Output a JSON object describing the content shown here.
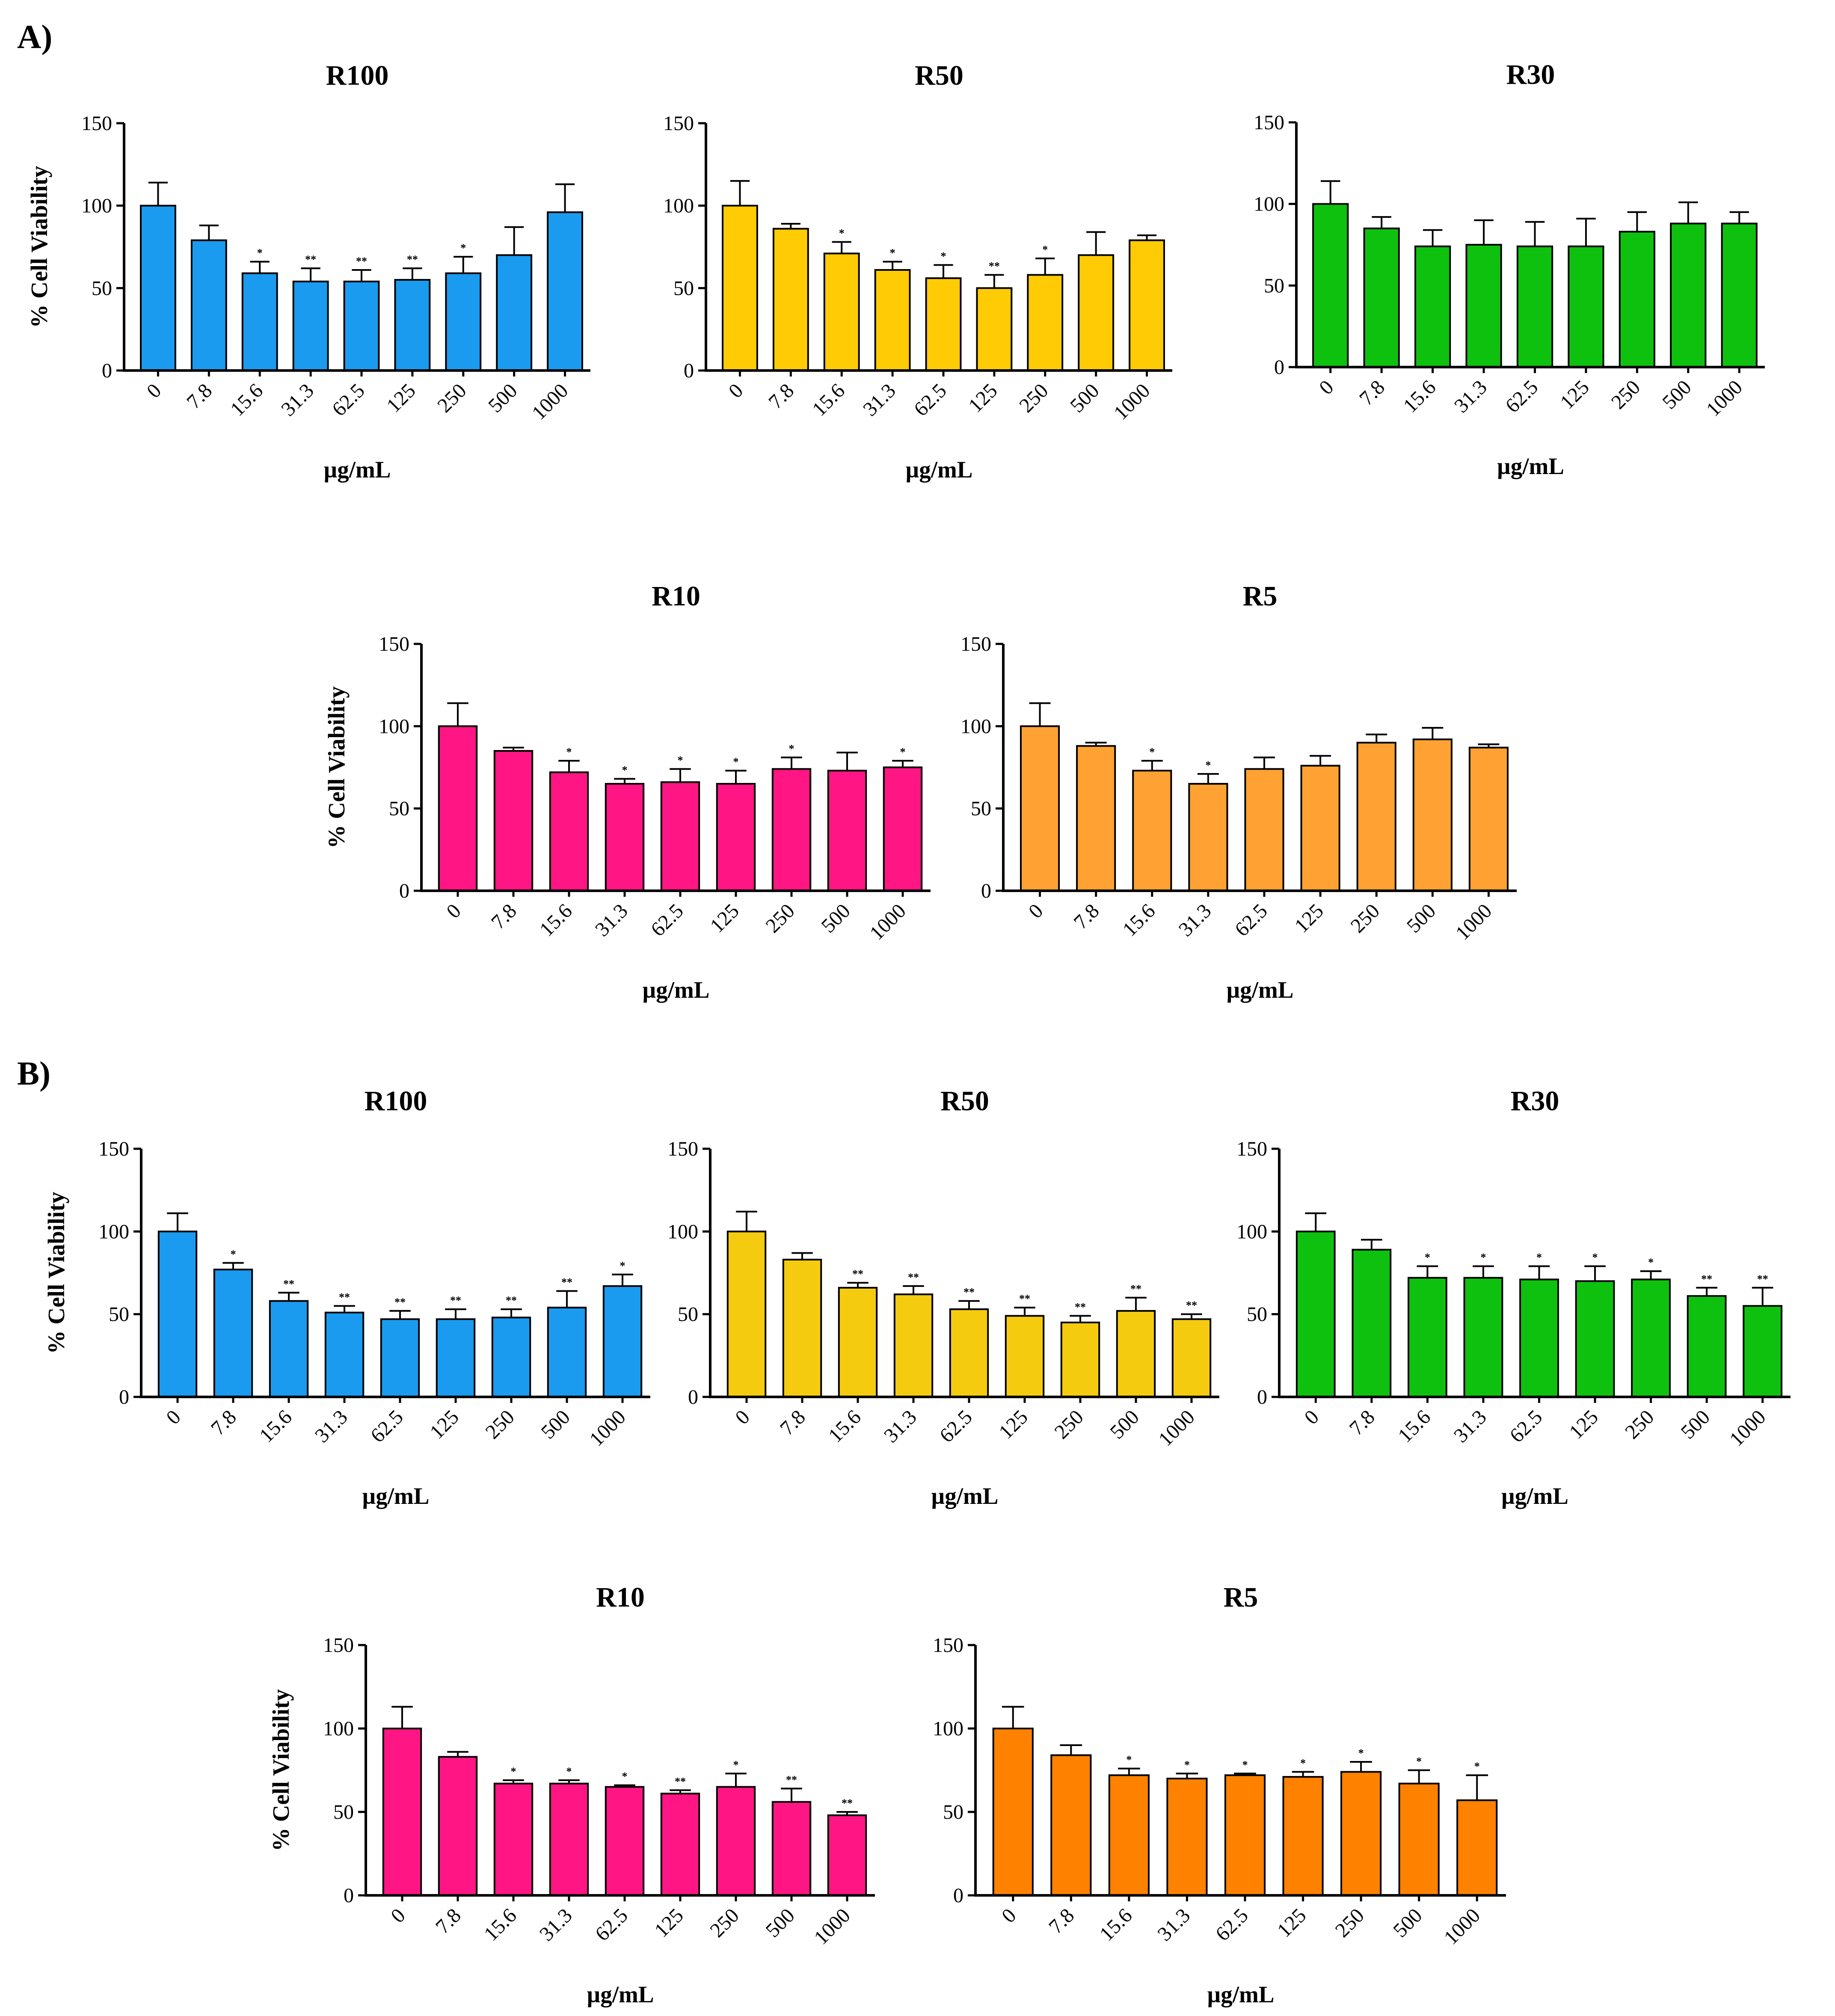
{
  "sections": [
    {
      "label": "A)"
    },
    {
      "label": "B)"
    }
  ],
  "chart_data": [
    {
      "type": "bar",
      "section": "A)",
      "title": "R100",
      "ylabel": "% Cell Viability",
      "xlabel": "µg/mL",
      "categories": [
        "0",
        "7.8",
        "15.6",
        "31.3",
        "62.5",
        "125",
        "250",
        "500",
        "1000"
      ],
      "values": [
        100,
        79,
        59,
        54,
        54,
        55,
        59,
        70,
        96
      ],
      "errors": [
        14,
        9,
        7,
        8,
        7,
        7,
        10,
        17,
        17
      ],
      "significance": [
        "",
        "",
        "*",
        "**",
        "**",
        "**",
        "*",
        "",
        ""
      ],
      "ylim": [
        0,
        150
      ],
      "yticks": [
        0,
        50,
        100,
        150
      ],
      "color": "#1A9BF0"
    },
    {
      "type": "bar",
      "section": "A)",
      "title": "R50",
      "ylabel": "",
      "xlabel": "µg/mL",
      "categories": [
        "0",
        "7.8",
        "15.6",
        "31.3",
        "62.5",
        "125",
        "250",
        "500",
        "1000"
      ],
      "values": [
        100,
        86,
        71,
        61,
        56,
        50,
        58,
        70,
        79
      ],
      "errors": [
        15,
        3,
        7,
        5,
        8,
        8,
        10,
        14,
        3
      ],
      "significance": [
        "",
        "",
        "*",
        "*",
        "*",
        "**",
        "*",
        "",
        ""
      ],
      "ylim": [
        0,
        150
      ],
      "yticks": [
        0,
        50,
        100,
        150
      ],
      "color": "#FFCB05"
    },
    {
      "type": "bar",
      "section": "A)",
      "title": "R30",
      "ylabel": "",
      "xlabel": "µg/mL",
      "categories": [
        "0",
        "7.8",
        "15.6",
        "31.3",
        "62.5",
        "125",
        "250",
        "500",
        "1000"
      ],
      "values": [
        100,
        85,
        74,
        75,
        74,
        74,
        83,
        88,
        88
      ],
      "errors": [
        14,
        7,
        10,
        15,
        15,
        17,
        12,
        13,
        7
      ],
      "significance": [
        "",
        "",
        "",
        "",
        "",
        "",
        "",
        "",
        ""
      ],
      "ylim": [
        0,
        150
      ],
      "yticks": [
        0,
        50,
        100,
        150
      ],
      "color": "#0FC10F"
    },
    {
      "type": "bar",
      "section": "A)",
      "title": "R10",
      "ylabel": "% Cell Viability",
      "xlabel": "µg/mL",
      "categories": [
        "0",
        "7.8",
        "15.6",
        "31.3",
        "62.5",
        "125",
        "250",
        "500",
        "1000"
      ],
      "values": [
        100,
        85,
        72,
        65,
        66,
        65,
        74,
        73,
        75
      ],
      "errors": [
        14,
        2,
        7,
        3,
        8,
        8,
        7,
        11,
        4
      ],
      "significance": [
        "",
        "",
        "*",
        "*",
        "*",
        "*",
        "*",
        "",
        "*"
      ],
      "ylim": [
        0,
        150
      ],
      "yticks": [
        0,
        50,
        100,
        150
      ],
      "color": "#FF1583"
    },
    {
      "type": "bar",
      "section": "A)",
      "title": "R5",
      "ylabel": "",
      "xlabel": "µg/mL",
      "categories": [
        "0",
        "7.8",
        "15.6",
        "31.3",
        "62.5",
        "125",
        "250",
        "500",
        "1000"
      ],
      "values": [
        100,
        88,
        73,
        65,
        74,
        76,
        90,
        92,
        87
      ],
      "errors": [
        14,
        2,
        6,
        6,
        7,
        6,
        5,
        7,
        2
      ],
      "significance": [
        "",
        "",
        "*",
        "*",
        "",
        "",
        "",
        "",
        ""
      ],
      "ylim": [
        0,
        150
      ],
      "yticks": [
        0,
        50,
        100,
        150
      ],
      "color": "#FFA233"
    },
    {
      "type": "bar",
      "section": "B)",
      "title": "R100",
      "ylabel": "% Cell Viability",
      "xlabel": "µg/mL",
      "categories": [
        "0",
        "7.8",
        "15.6",
        "31.3",
        "62.5",
        "125",
        "250",
        "500",
        "1000"
      ],
      "values": [
        100,
        77,
        58,
        51,
        47,
        47,
        48,
        54,
        67
      ],
      "errors": [
        11,
        4,
        5,
        4,
        5,
        6,
        5,
        10,
        7
      ],
      "significance": [
        "",
        "*",
        "**",
        "**",
        "**",
        "**",
        "**",
        "**",
        "*"
      ],
      "ylim": [
        0,
        150
      ],
      "yticks": [
        0,
        50,
        100,
        150
      ],
      "color": "#1A9BF0"
    },
    {
      "type": "bar",
      "section": "B)",
      "title": "R50",
      "ylabel": "",
      "xlabel": "µg/mL",
      "categories": [
        "0",
        "7.8",
        "15.6",
        "31.3",
        "62.5",
        "125",
        "250",
        "500",
        "1000"
      ],
      "values": [
        100,
        83,
        66,
        62,
        53,
        49,
        45,
        52,
        47
      ],
      "errors": [
        12,
        4,
        3,
        5,
        5,
        5,
        4,
        8,
        3
      ],
      "significance": [
        "",
        "",
        "**",
        "**",
        "**",
        "**",
        "**",
        "**",
        "**"
      ],
      "ylim": [
        0,
        150
      ],
      "yticks": [
        0,
        50,
        100,
        150
      ],
      "color": "#F5CB10"
    },
    {
      "type": "bar",
      "section": "B)",
      "title": "R30",
      "ylabel": "",
      "xlabel": "µg/mL",
      "categories": [
        "0",
        "7.8",
        "15.6",
        "31.3",
        "62.5",
        "125",
        "250",
        "500",
        "1000"
      ],
      "values": [
        100,
        89,
        72,
        72,
        71,
        70,
        71,
        61,
        55
      ],
      "errors": [
        11,
        6,
        7,
        7,
        8,
        9,
        5,
        5,
        11
      ],
      "significance": [
        "",
        "",
        "*",
        "*",
        "*",
        "*",
        "*",
        "**",
        "**"
      ],
      "ylim": [
        0,
        150
      ],
      "yticks": [
        0,
        50,
        100,
        150
      ],
      "color": "#0FC10F"
    },
    {
      "type": "bar",
      "section": "B)",
      "title": "R10",
      "ylabel": "% Cell Viability",
      "xlabel": "µg/mL",
      "categories": [
        "0",
        "7.8",
        "15.6",
        "31.3",
        "62.5",
        "125",
        "250",
        "500",
        "1000"
      ],
      "values": [
        100,
        83,
        67,
        67,
        65,
        61,
        65,
        56,
        48
      ],
      "errors": [
        13,
        3,
        2,
        2,
        1,
        2,
        8,
        8,
        2
      ],
      "significance": [
        "",
        "",
        "*",
        "*",
        "*",
        "**",
        "*",
        "**",
        "**"
      ],
      "ylim": [
        0,
        150
      ],
      "yticks": [
        0,
        50,
        100,
        150
      ],
      "color": "#FF1583"
    },
    {
      "type": "bar",
      "section": "B)",
      "title": "R5",
      "ylabel": "",
      "xlabel": "µg/mL",
      "categories": [
        "0",
        "7.8",
        "15.6",
        "31.3",
        "62.5",
        "125",
        "250",
        "500",
        "1000"
      ],
      "values": [
        100,
        84,
        72,
        70,
        72,
        71,
        74,
        67,
        57
      ],
      "errors": [
        13,
        6,
        4,
        3,
        1,
        3,
        6,
        8,
        15
      ],
      "significance": [
        "",
        "",
        "*",
        "*",
        "*",
        "*",
        "*",
        "*",
        "*"
      ],
      "ylim": [
        0,
        150
      ],
      "yticks": [
        0,
        50,
        100,
        150
      ],
      "color": "#FF8100"
    }
  ]
}
